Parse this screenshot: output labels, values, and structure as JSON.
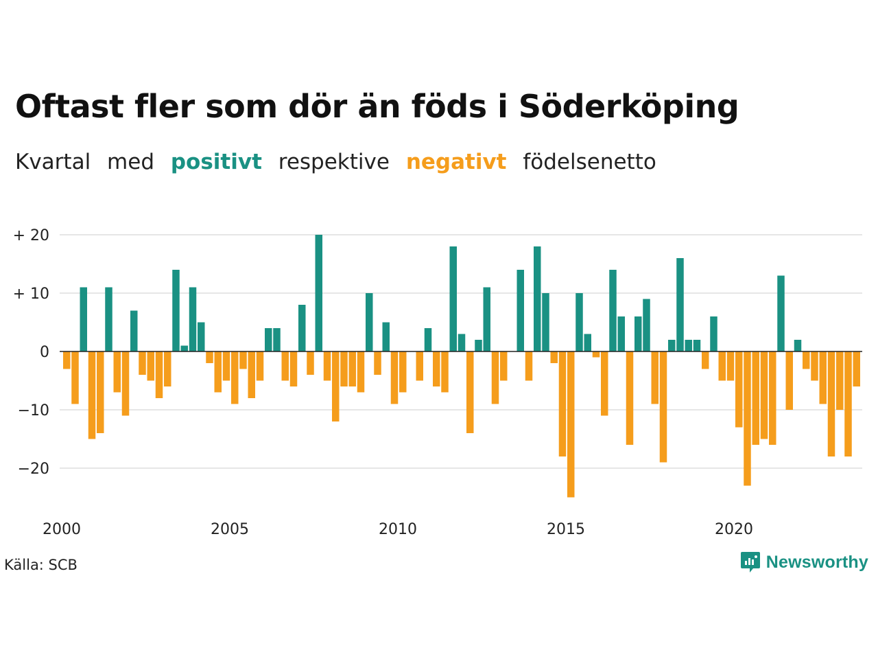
{
  "title": "Oftast fler som dör än föds i Söderköping",
  "subtitle": {
    "part1": "Kvartal",
    "part2": "med",
    "positive_word": "positivt",
    "part3": "respektive",
    "negative_word": "negativt",
    "part4": "födelsenetto"
  },
  "colors": {
    "positive": "#1a9183",
    "negative": "#f59d1c",
    "grid": "#dddddd",
    "axis": "#222222"
  },
  "source": "Källa: SCB",
  "brand": {
    "name": "Newsworthy",
    "icon": "newsworthy-logo-icon"
  },
  "chart_data": {
    "type": "bar",
    "title": "Oftast fler som dör än föds i Söderköping",
    "x_start": "2000 Q1",
    "x_ticks": [
      "2000",
      "2005",
      "2010",
      "2015",
      "2020"
    ],
    "y_ticks": [
      {
        "value": 20,
        "label": "+ 20"
      },
      {
        "value": 10,
        "label": "+ 10"
      },
      {
        "value": 0,
        "label": "0"
      },
      {
        "value": -10,
        "label": "−10"
      },
      {
        "value": -20,
        "label": "−20"
      }
    ],
    "ylim": [
      -26,
      20
    ],
    "grid": true,
    "categories": [
      "2000 Q1",
      "2000 Q2",
      "2000 Q3",
      "2000 Q4",
      "2001 Q1",
      "2001 Q2",
      "2001 Q3",
      "2001 Q4",
      "2002 Q1",
      "2002 Q2",
      "2002 Q3",
      "2002 Q4",
      "2003 Q1",
      "2003 Q2",
      "2003 Q3",
      "2003 Q4",
      "2004 Q1",
      "2004 Q2",
      "2004 Q3",
      "2004 Q4",
      "2005 Q1",
      "2005 Q2",
      "2005 Q3",
      "2005 Q4",
      "2006 Q1",
      "2006 Q2",
      "2006 Q3",
      "2006 Q4",
      "2007 Q1",
      "2007 Q2",
      "2007 Q3",
      "2007 Q4",
      "2008 Q1",
      "2008 Q2",
      "2008 Q3",
      "2008 Q4",
      "2009 Q1",
      "2009 Q2",
      "2009 Q3",
      "2009 Q4",
      "2010 Q1",
      "2010 Q2",
      "2010 Q3",
      "2010 Q4",
      "2011 Q1",
      "2011 Q2",
      "2011 Q3",
      "2011 Q4",
      "2012 Q1",
      "2012 Q2",
      "2012 Q3",
      "2012 Q4",
      "2013 Q1",
      "2013 Q2",
      "2013 Q3",
      "2013 Q4",
      "2014 Q1",
      "2014 Q2",
      "2014 Q3",
      "2014 Q4",
      "2015 Q1",
      "2015 Q2",
      "2015 Q3",
      "2015 Q4",
      "2016 Q1",
      "2016 Q2",
      "2016 Q3",
      "2016 Q4",
      "2017 Q1",
      "2017 Q2",
      "2017 Q3",
      "2017 Q4",
      "2018 Q1",
      "2018 Q2",
      "2018 Q3",
      "2018 Q4",
      "2019 Q1",
      "2019 Q2",
      "2019 Q3",
      "2019 Q4",
      "2020 Q1",
      "2020 Q2",
      "2020 Q3",
      "2020 Q4",
      "2021 Q1",
      "2021 Q2",
      "2021 Q3",
      "2021 Q4",
      "2022 Q1",
      "2022 Q2",
      "2022 Q3",
      "2022 Q4",
      "2023 Q1",
      "2023 Q2",
      "2023 Q3",
      "2023 Q4"
    ],
    "values": [
      -3,
      -9,
      11,
      -15,
      -14,
      11,
      -7,
      -11,
      7,
      -4,
      -5,
      -8,
      -6,
      14,
      1,
      11,
      5,
      -2,
      -7,
      -5,
      -9,
      -3,
      -8,
      -5,
      4,
      4,
      -5,
      -6,
      8,
      -4,
      20,
      -5,
      -12,
      -6,
      -6,
      -7,
      10,
      -4,
      5,
      -9,
      -7,
      0,
      -5,
      4,
      -6,
      -7,
      18,
      3,
      -14,
      2,
      11,
      -9,
      -5,
      0,
      14,
      -5,
      18,
      10,
      -2,
      -18,
      -25,
      10,
      3,
      -1,
      -11,
      14,
      6,
      -16,
      6,
      9,
      -9,
      -19,
      2,
      16,
      2,
      2,
      -3,
      6,
      -5,
      -5,
      -13,
      -23,
      -16,
      -15,
      -16,
      13,
      -10,
      2,
      -3,
      -5,
      -9,
      -18,
      -10,
      -18,
      -6,
      0
    ]
  }
}
